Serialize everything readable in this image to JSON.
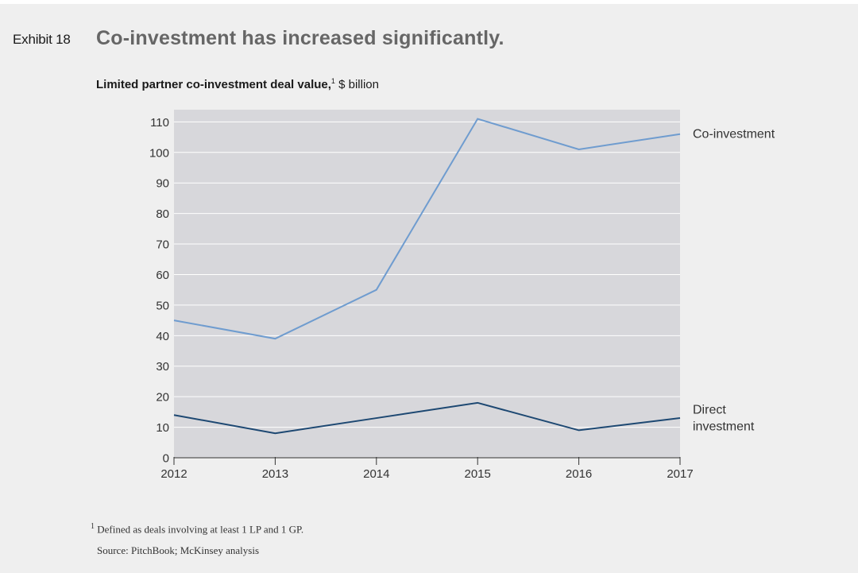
{
  "exhibit": {
    "label": "Exhibit 18",
    "title": "Co-investment has increased significantly."
  },
  "colors": {
    "plot_background": "#d7d7db",
    "gridline": "#ffffff",
    "co_investment": "#6f9ccf",
    "direct_investment": "#1d4872",
    "text": "#333333"
  },
  "chart_data": {
    "type": "line",
    "title": "Limited partner co-investment deal value,",
    "title_superscript": "1",
    "unit": "$ billion",
    "xlabel": "",
    "ylabel": "",
    "categories": [
      "2012",
      "2013",
      "2014",
      "2015",
      "2016",
      "2017"
    ],
    "y_ticks": [
      0,
      10,
      20,
      30,
      40,
      50,
      60,
      70,
      80,
      90,
      100,
      110
    ],
    "ylim": [
      0,
      114
    ],
    "grid": true,
    "series": [
      {
        "name": "Co-investment",
        "label_lines": [
          "Co-investment"
        ],
        "values": [
          45,
          39,
          55,
          111,
          101,
          106
        ]
      },
      {
        "name": "Direct investment",
        "label_lines": [
          "Direct",
          "investment"
        ],
        "values": [
          14,
          8,
          13,
          18,
          9,
          13
        ]
      }
    ]
  },
  "footnotes": {
    "marker": "1",
    "note": "Defined as deals involving at least 1 LP and 1 GP.",
    "source": "Source: PitchBook; McKinsey analysis"
  }
}
